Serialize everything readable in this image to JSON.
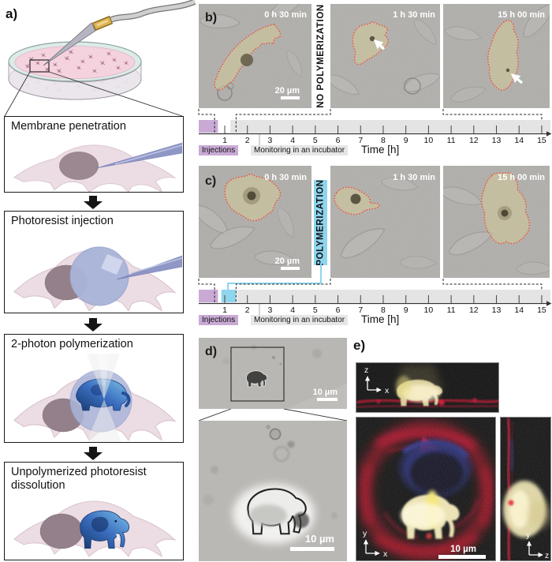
{
  "panel_a": {
    "label": "a)",
    "steps": [
      {
        "label": "Membrane penetration"
      },
      {
        "label": "Photoresist injection"
      },
      {
        "label": "2-photon polymerization"
      },
      {
        "label": "Unpolymerized photoresist dissolution"
      }
    ]
  },
  "panel_b": {
    "label": "b)",
    "condition_label": "NO  POLYMERIZATION",
    "scale_bar": "20 µm",
    "frames": [
      {
        "timestamp": "0 h 30 min"
      },
      {
        "timestamp": "1 h 30 min"
      },
      {
        "timestamp": "15 h 00 min"
      }
    ]
  },
  "panel_c": {
    "label": "c)",
    "condition_label": "POLYMERIZATION",
    "scale_bar": "20 µm",
    "frames": [
      {
        "timestamp": "0 h 30 min"
      },
      {
        "timestamp": "1 h 30 min"
      },
      {
        "timestamp": "15 h 00 min"
      }
    ]
  },
  "timeline": {
    "xlabel": "Time [h]",
    "ticks": [
      1,
      2,
      3,
      4,
      5,
      6,
      7,
      8,
      9,
      10,
      11,
      12,
      13,
      14,
      15
    ],
    "injections_label": "Injections",
    "monitoring_label": "Monitoring in an incubator",
    "injection_window_h": [
      0,
      0.7
    ],
    "polymerization_window_h": [
      0.85,
      1.5
    ],
    "monitoring_window_b_h": [
      1.25,
      15.6
    ],
    "monitoring_window_c_h": [
      1.55,
      15.6
    ],
    "frame_times_h": [
      0.5,
      1.5,
      15.0
    ]
  },
  "panel_d": {
    "label": "d)",
    "scale_bar_overview": "10 µm",
    "scale_bar_zoom": "10 µm"
  },
  "panel_e": {
    "label": "e)",
    "scale_bar": "10 µm",
    "axes": {
      "top": [
        "z",
        "x"
      ],
      "bottom_left": [
        "y",
        "x"
      ],
      "bottom_right": [
        "y",
        "z"
      ]
    }
  },
  "colors": {
    "outline_red": "#f23b28",
    "injection_purple": "#c9aad5",
    "polymerization_blue": "#8ed5ee",
    "monitoring_gray": "#e4e4e4",
    "photoresist_blue": "#aab5d9",
    "elephant_blue": "#3b6fc0",
    "fluor_red": "#b2001c",
    "fluor_yellow": "#e9dfab",
    "fluor_nucleus_blue": "#141c66"
  }
}
